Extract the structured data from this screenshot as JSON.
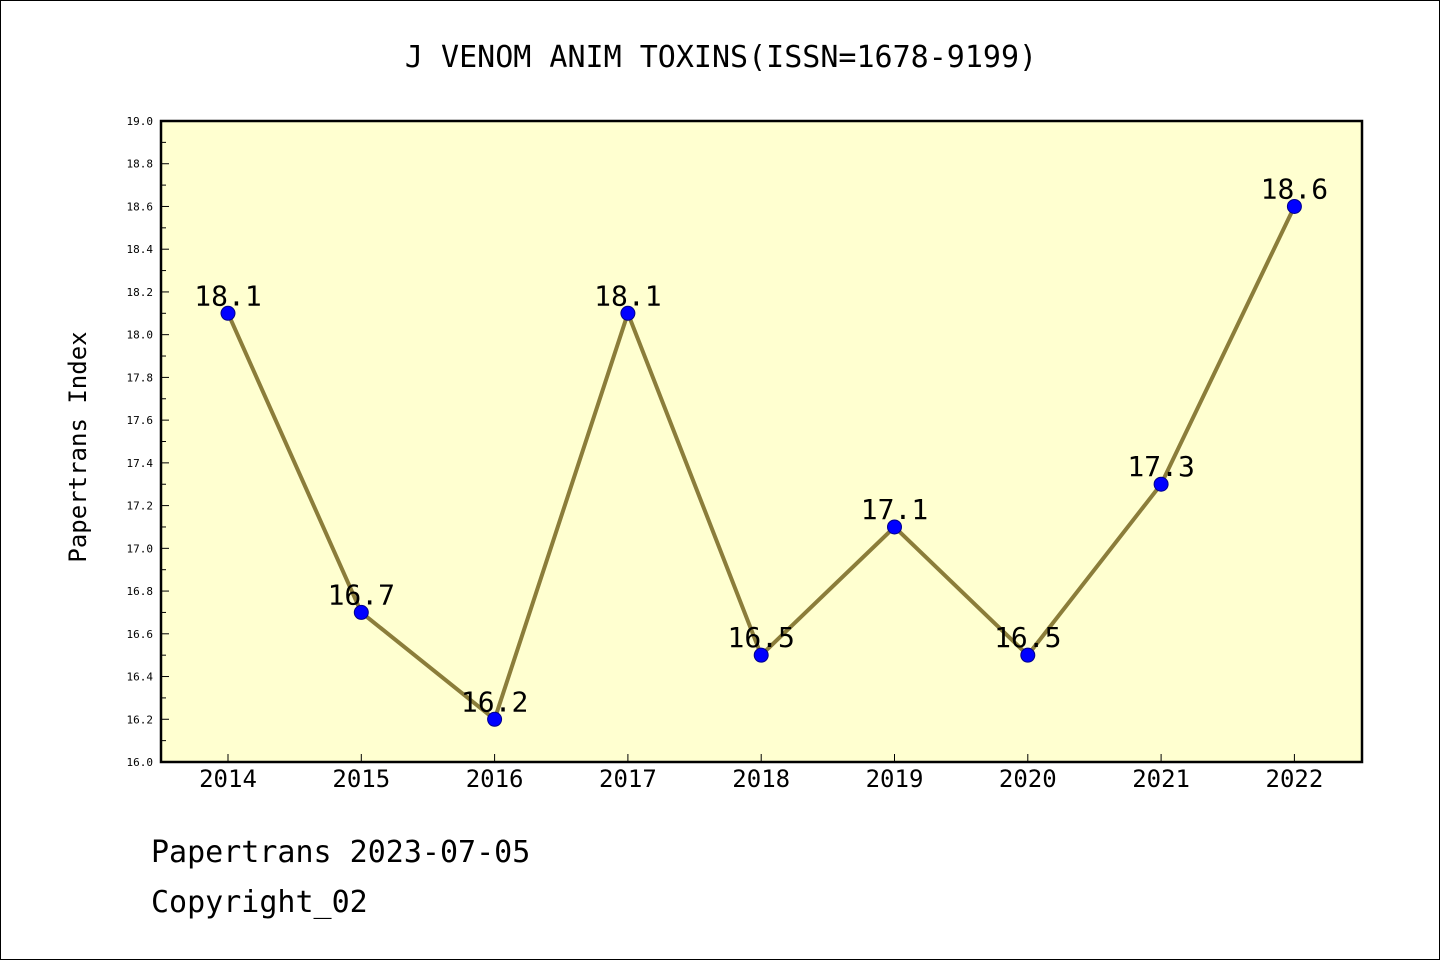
{
  "chart_data": {
    "type": "line",
    "title": "J VENOM ANIM TOXINS(ISSN=1678-9199)",
    "ylabel": "Papertrans Index",
    "xlabel": "",
    "categories": [
      "2014",
      "2015",
      "2016",
      "2017",
      "2018",
      "2019",
      "2020",
      "2021",
      "2022"
    ],
    "series": [
      {
        "values": [
          18.1,
          16.7,
          16.2,
          18.1,
          16.5,
          17.1,
          16.5,
          17.3,
          18.6
        ]
      }
    ],
    "data_labels": [
      "18.1",
      "16.7",
      "16.2",
      "18.1",
      "16.5",
      "17.1",
      "16.5",
      "17.3",
      "18.6"
    ],
    "ylim": [
      16.0,
      19.0
    ],
    "y_ticks": [
      "16.0",
      "16.2",
      "16.4",
      "16.6",
      "16.8",
      "17.0",
      "17.2",
      "17.4",
      "17.6",
      "17.8",
      "18.0",
      "18.2",
      "18.4",
      "18.6",
      "18.8",
      "19.0"
    ],
    "grid": false,
    "colors": {
      "plot_background": "#ffffd0",
      "line": "#8b7d3a",
      "marker": "#0000ff"
    }
  },
  "footer": {
    "line1": "Papertrans 2023-07-05",
    "line2": "Copyright_02"
  }
}
